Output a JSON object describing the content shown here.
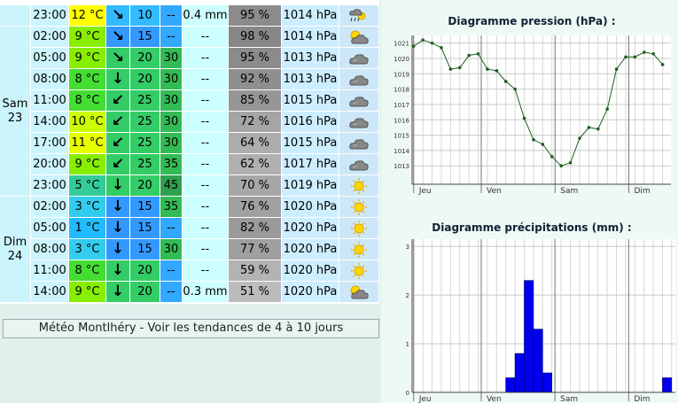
{
  "table": {
    "groups": [
      {
        "rows": [
          {
            "time": "23:00",
            "temp": "12 °C",
            "arrow": "↘",
            "wind": "10",
            "gust": "--",
            "rain": "0.4 mm",
            "humidity": "95 %",
            "pressure": "1014 hPa",
            "icon": "rain-sun"
          }
        ]
      },
      {
        "day": "Sam",
        "date": "23",
        "rows": [
          {
            "time": "02:00",
            "temp": "9 °C",
            "arrow": "↘",
            "wind": "15",
            "gust": "--",
            "rain": "--",
            "humidity": "98 %",
            "pressure": "1014 hPa",
            "icon": "sun-cloud"
          },
          {
            "time": "05:00",
            "temp": "9 °C",
            "arrow": "↘",
            "wind": "20",
            "gust": "30",
            "rain": "--",
            "humidity": "95 %",
            "pressure": "1013 hPa",
            "icon": "cloud"
          },
          {
            "time": "08:00",
            "temp": "8 °C",
            "arrow": "↓",
            "wind": "20",
            "gust": "30",
            "rain": "--",
            "humidity": "92 %",
            "pressure": "1013 hPa",
            "icon": "cloud"
          },
          {
            "time": "11:00",
            "temp": "8 °C",
            "arrow": "↙",
            "wind": "25",
            "gust": "30",
            "rain": "--",
            "humidity": "85 %",
            "pressure": "1015 hPa",
            "icon": "cloud"
          },
          {
            "time": "14:00",
            "temp": "10 °C",
            "arrow": "↙",
            "wind": "25",
            "gust": "30",
            "rain": "--",
            "humidity": "72 %",
            "pressure": "1016 hPa",
            "icon": "cloud"
          },
          {
            "time": "17:00",
            "temp": "11 °C",
            "arrow": "↙",
            "wind": "25",
            "gust": "30",
            "rain": "--",
            "humidity": "64 %",
            "pressure": "1015 hPa",
            "icon": "cloud"
          },
          {
            "time": "20:00",
            "temp": "9 °C",
            "arrow": "↙",
            "wind": "25",
            "gust": "35",
            "rain": "--",
            "humidity": "62 %",
            "pressure": "1017 hPa",
            "icon": "cloud"
          },
          {
            "time": "23:00",
            "temp": "5 °C",
            "arrow": "↓",
            "wind": "20",
            "gust": "45",
            "rain": "--",
            "humidity": "70 %",
            "pressure": "1019 hPa",
            "icon": "sun"
          }
        ]
      },
      {
        "day": "Dim",
        "date": "24",
        "rows": [
          {
            "time": "02:00",
            "temp": "3 °C",
            "arrow": "↓",
            "wind": "15",
            "gust": "35",
            "rain": "--",
            "humidity": "76 %",
            "pressure": "1020 hPa",
            "icon": "sun"
          },
          {
            "time": "05:00",
            "temp": "1 °C",
            "arrow": "↓",
            "wind": "15",
            "gust": "--",
            "rain": "--",
            "humidity": "82 %",
            "pressure": "1020 hPa",
            "icon": "sun"
          },
          {
            "time": "08:00",
            "temp": "3 °C",
            "arrow": "↓",
            "wind": "15",
            "gust": "30",
            "rain": "--",
            "humidity": "77 %",
            "pressure": "1020 hPa",
            "icon": "sun"
          },
          {
            "time": "11:00",
            "temp": "8 °C",
            "arrow": "↓",
            "wind": "20",
            "gust": "--",
            "rain": "--",
            "humidity": "59 %",
            "pressure": "1020 hPa",
            "icon": "sun"
          },
          {
            "time": "14:00",
            "temp": "9 °C",
            "arrow": "↓",
            "wind": "20",
            "gust": "--",
            "rain": "0.3 mm",
            "humidity": "51 %",
            "pressure": "1020 hPa",
            "icon": "sun-cloud"
          }
        ]
      }
    ]
  },
  "footer": "Météo Montlhéry - Voir les tendances de 4 à 10 jours",
  "chart_data": [
    {
      "type": "line",
      "title": "Diagramme pression (hPa) :",
      "x": [
        2,
        5,
        8,
        11,
        14,
        17,
        20,
        23,
        26,
        29,
        32,
        35,
        38,
        41,
        44,
        47,
        50,
        53,
        56,
        59,
        62,
        65,
        68,
        71,
        74,
        77,
        80,
        83
      ],
      "values": [
        1020.8,
        1021.2,
        1021.0,
        1020.7,
        1019.3,
        1019.4,
        1020.2,
        1020.3,
        1019.3,
        1019.2,
        1018.5,
        1018.0,
        1016.1,
        1014.7,
        1014.4,
        1013.6,
        1013.0,
        1013.2,
        1014.8,
        1015.5,
        1015.4,
        1016.7,
        1019.3,
        1020.1,
        1020.1,
        1020.4,
        1020.3,
        1019.6
      ],
      "color": "#1e5e1e",
      "xlim": [
        1.5,
        85.7
      ],
      "ylim": [
        1011.8,
        1021.5
      ],
      "yticks": [
        1013,
        1014,
        1015,
        1016,
        1017,
        1018,
        1019,
        1020,
        1021
      ],
      "xticks": [
        {
          "value": 2,
          "label": "Jeu"
        },
        {
          "value": 24,
          "label": "Ven"
        },
        {
          "value": 48,
          "label": "Sam"
        },
        {
          "value": 72,
          "label": "Dim"
        }
      ],
      "grid": true
    },
    {
      "type": "histogram",
      "title": "Diagramme précipitations (mm) :",
      "bins": [
        2,
        5,
        8,
        11,
        14,
        17,
        20,
        23,
        26,
        29,
        32,
        35,
        38,
        41,
        44,
        47,
        50,
        53,
        56,
        59,
        62,
        65,
        68,
        71,
        74,
        77,
        80,
        83,
        86
      ],
      "values": [
        0,
        0,
        0,
        0,
        0,
        0,
        0,
        0,
        0,
        0,
        0.3,
        0.8,
        2.3,
        1.3,
        0.4,
        0,
        0,
        0,
        0,
        0,
        0,
        0,
        0,
        0,
        0,
        0,
        0,
        0.3
      ],
      "color": "#0000ee",
      "xlim": [
        1.5,
        87.2
      ],
      "ylim": [
        0,
        3.15
      ],
      "yticks": [
        0,
        1,
        2,
        3
      ],
      "xticks": [
        {
          "value": 2,
          "label": "Jeu"
        },
        {
          "value": 24,
          "label": "Ven"
        },
        {
          "value": 48,
          "label": "Sam"
        },
        {
          "value": 72,
          "label": "Dim"
        }
      ],
      "grid": true
    }
  ]
}
